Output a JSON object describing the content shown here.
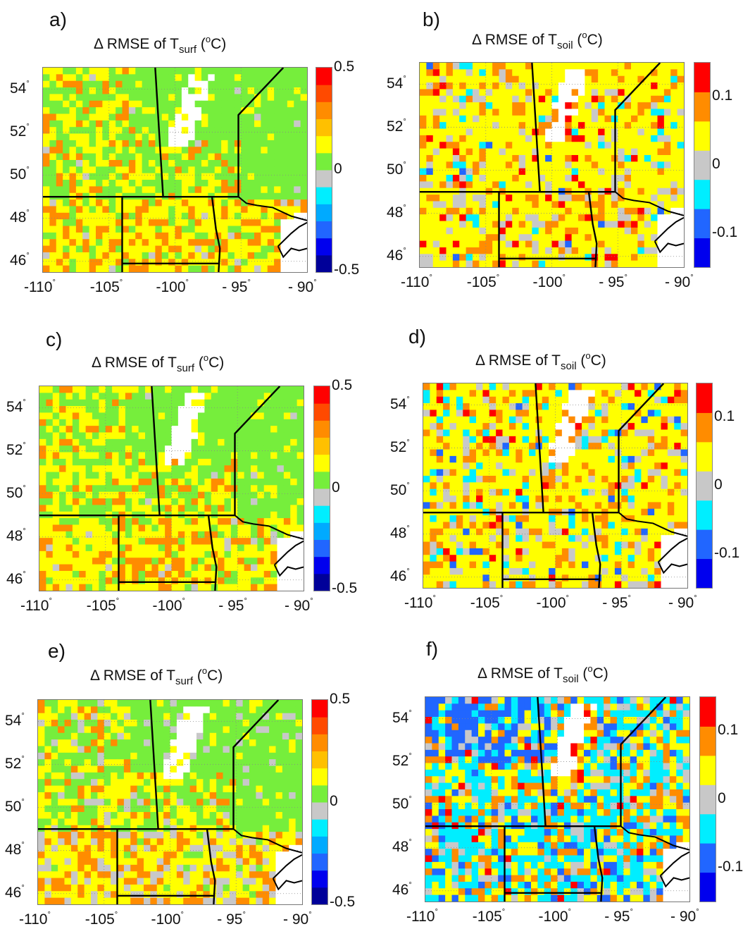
{
  "colors": {
    "white": "#ffffff",
    "grey": "#c8c8c8",
    "green": "#76ee3c",
    "yellow": "#ffff00",
    "light_orange": "#ffc000",
    "orange": "#ff8c00",
    "red_orange": "#ff4a00",
    "red": "#ff0000",
    "cyan": "#00eeff",
    "mid_blue": "#00aaff",
    "blue": "#2166ff",
    "deep_blue": "#0000ee",
    "navy": "#000099",
    "border": "#000000"
  },
  "chart_data": [
    {
      "panel_label": "a)",
      "title": {
        "prefix": "Δ RMSE of T",
        "sub": "surf",
        "open": " (",
        "sup": "o",
        "close": "C)"
      },
      "type": "heatmap",
      "variable": "surf",
      "xlim": [
        -110,
        -90
      ],
      "ylim": [
        45.5,
        55
      ],
      "colorbar": {
        "min": -0.5,
        "max": 0.5,
        "ticks": [
          "0.5",
          "0",
          "-0.5"
        ],
        "colors": [
          "navy",
          "deep_blue",
          "blue",
          "mid_blue",
          "cyan",
          "grey",
          "green",
          "yellow",
          "light_orange",
          "orange",
          "red_orange",
          "red"
        ]
      },
      "ytick_labels": [
        "54",
        "52",
        "50",
        "48",
        "46"
      ],
      "xtick_labels": [
        "-110",
        "-105",
        "-100",
        "- 95",
        "- 90"
      ],
      "profile": {
        "base": "green",
        "north_prairie": "yellow",
        "south": "yellow",
        "hot": "orange",
        "cold_frac": 0.02
      }
    },
    {
      "panel_label": "b)",
      "title": {
        "prefix": "Δ RMSE of T",
        "sub": "soil",
        "open": " (",
        "sup": "o",
        "close": "C)"
      },
      "type": "heatmap",
      "variable": "soil",
      "xlim": [
        -110,
        -90
      ],
      "ylim": [
        45.5,
        55
      ],
      "colorbar": {
        "min": -0.15,
        "max": 0.15,
        "ticks": [
          "0.1",
          "0",
          "-0.1"
        ],
        "colors": [
          "deep_blue",
          "blue",
          "cyan",
          "grey",
          "yellow",
          "orange",
          "red"
        ]
      },
      "ytick_labels": [
        "54",
        "52",
        "50",
        "48",
        "46"
      ],
      "xtick_labels": [
        "-110",
        "-105",
        "-100",
        "- 95",
        "- 90"
      ],
      "profile": {
        "base": "yellow",
        "north_prairie": "yellow",
        "south": "yellow",
        "hot": "orange",
        "cold_frac": 0.05
      }
    },
    {
      "panel_label": "c)",
      "title": {
        "prefix": "Δ RMSE of T",
        "sub": "surf",
        "open": " (",
        "sup": "o",
        "close": "C)"
      },
      "type": "heatmap",
      "variable": "surf",
      "xlim": [
        -110,
        -90
      ],
      "ylim": [
        45.5,
        55
      ],
      "colorbar": {
        "min": -0.5,
        "max": 0.5,
        "ticks": [
          "0.5",
          "0",
          "-0.5"
        ],
        "colors": [
          "navy",
          "deep_blue",
          "blue",
          "mid_blue",
          "cyan",
          "grey",
          "green",
          "yellow",
          "light_orange",
          "orange",
          "red_orange",
          "red"
        ]
      },
      "ytick_labels": [
        "54",
        "52",
        "50",
        "48",
        "46"
      ],
      "xtick_labels": [
        "-110",
        "-105",
        "-100",
        "- 95",
        "- 90"
      ],
      "profile": {
        "base": "green",
        "north_prairie": "yellow",
        "south": "yellow",
        "hot": "orange",
        "cold_frac": 0.02
      }
    },
    {
      "panel_label": "d)",
      "title": {
        "prefix": "Δ RMSE of T",
        "sub": "soil",
        "open": " (",
        "sup": "o",
        "close": "C)"
      },
      "type": "heatmap",
      "variable": "soil",
      "xlim": [
        -110,
        -90
      ],
      "ylim": [
        45.5,
        55
      ],
      "colorbar": {
        "min": -0.15,
        "max": 0.15,
        "ticks": [
          "0.1",
          "0",
          "-0.1"
        ],
        "colors": [
          "deep_blue",
          "blue",
          "cyan",
          "grey",
          "yellow",
          "orange",
          "red"
        ]
      },
      "ytick_labels": [
        "54",
        "52",
        "50",
        "48",
        "46"
      ],
      "xtick_labels": [
        "-110",
        "-105",
        "-100",
        "- 95",
        "- 90"
      ],
      "profile": {
        "base": "yellow",
        "north_prairie": "yellow",
        "south": "yellow",
        "hot": "orange",
        "cold_frac": 0.12
      }
    },
    {
      "panel_label": "e)",
      "title": {
        "prefix": "Δ RMSE of T",
        "sub": "surf",
        "open": " (",
        "sup": "o",
        "close": "C)"
      },
      "type": "heatmap",
      "variable": "surf",
      "xlim": [
        -110,
        -90
      ],
      "ylim": [
        45.5,
        55
      ],
      "colorbar": {
        "min": -0.5,
        "max": 0.5,
        "ticks": [
          "0.5",
          "0",
          "-0.5"
        ],
        "colors": [
          "navy",
          "deep_blue",
          "blue",
          "mid_blue",
          "cyan",
          "grey",
          "green",
          "yellow",
          "light_orange",
          "orange",
          "red_orange",
          "red"
        ]
      },
      "ytick_labels": [
        "54",
        "52",
        "50",
        "48",
        "46"
      ],
      "xtick_labels": [
        "-110",
        "-105",
        "-100",
        "- 95",
        "- 90"
      ],
      "profile": {
        "base": "green",
        "north_prairie": "yellow",
        "south": "yellow",
        "hot": "orange",
        "cold_frac": 0.15
      }
    },
    {
      "panel_label": "f)",
      "title": {
        "prefix": "Δ RMSE of T",
        "sub": "soil",
        "open": " (",
        "sup": "o",
        "close": "C)"
      },
      "type": "heatmap",
      "variable": "soil",
      "xlim": [
        -110,
        -90
      ],
      "ylim": [
        45.5,
        55
      ],
      "colorbar": {
        "min": -0.15,
        "max": 0.15,
        "ticks": [
          "0.1",
          "0",
          "-0.1"
        ],
        "colors": [
          "deep_blue",
          "blue",
          "cyan",
          "grey",
          "yellow",
          "orange",
          "red"
        ]
      },
      "ytick_labels": [
        "54",
        "52",
        "50",
        "48",
        "46"
      ],
      "xtick_labels": [
        "-110",
        "-105",
        "-100",
        "- 95",
        "- 90"
      ],
      "profile": {
        "base": "cyan",
        "north_prairie": "grey",
        "south": "yellow",
        "hot": "orange",
        "cold_frac": 0.45
      }
    }
  ],
  "boundaries": {
    "us_canada_border_lat": 49,
    "ab_sk_lon": -110,
    "sk_mb_lon": -101.5,
    "mb_on_lon": -95.2,
    "mt_nd_lon": -104,
    "nd_sd_lat": 45.9,
    "nd_mn_lon": -96.8
  }
}
